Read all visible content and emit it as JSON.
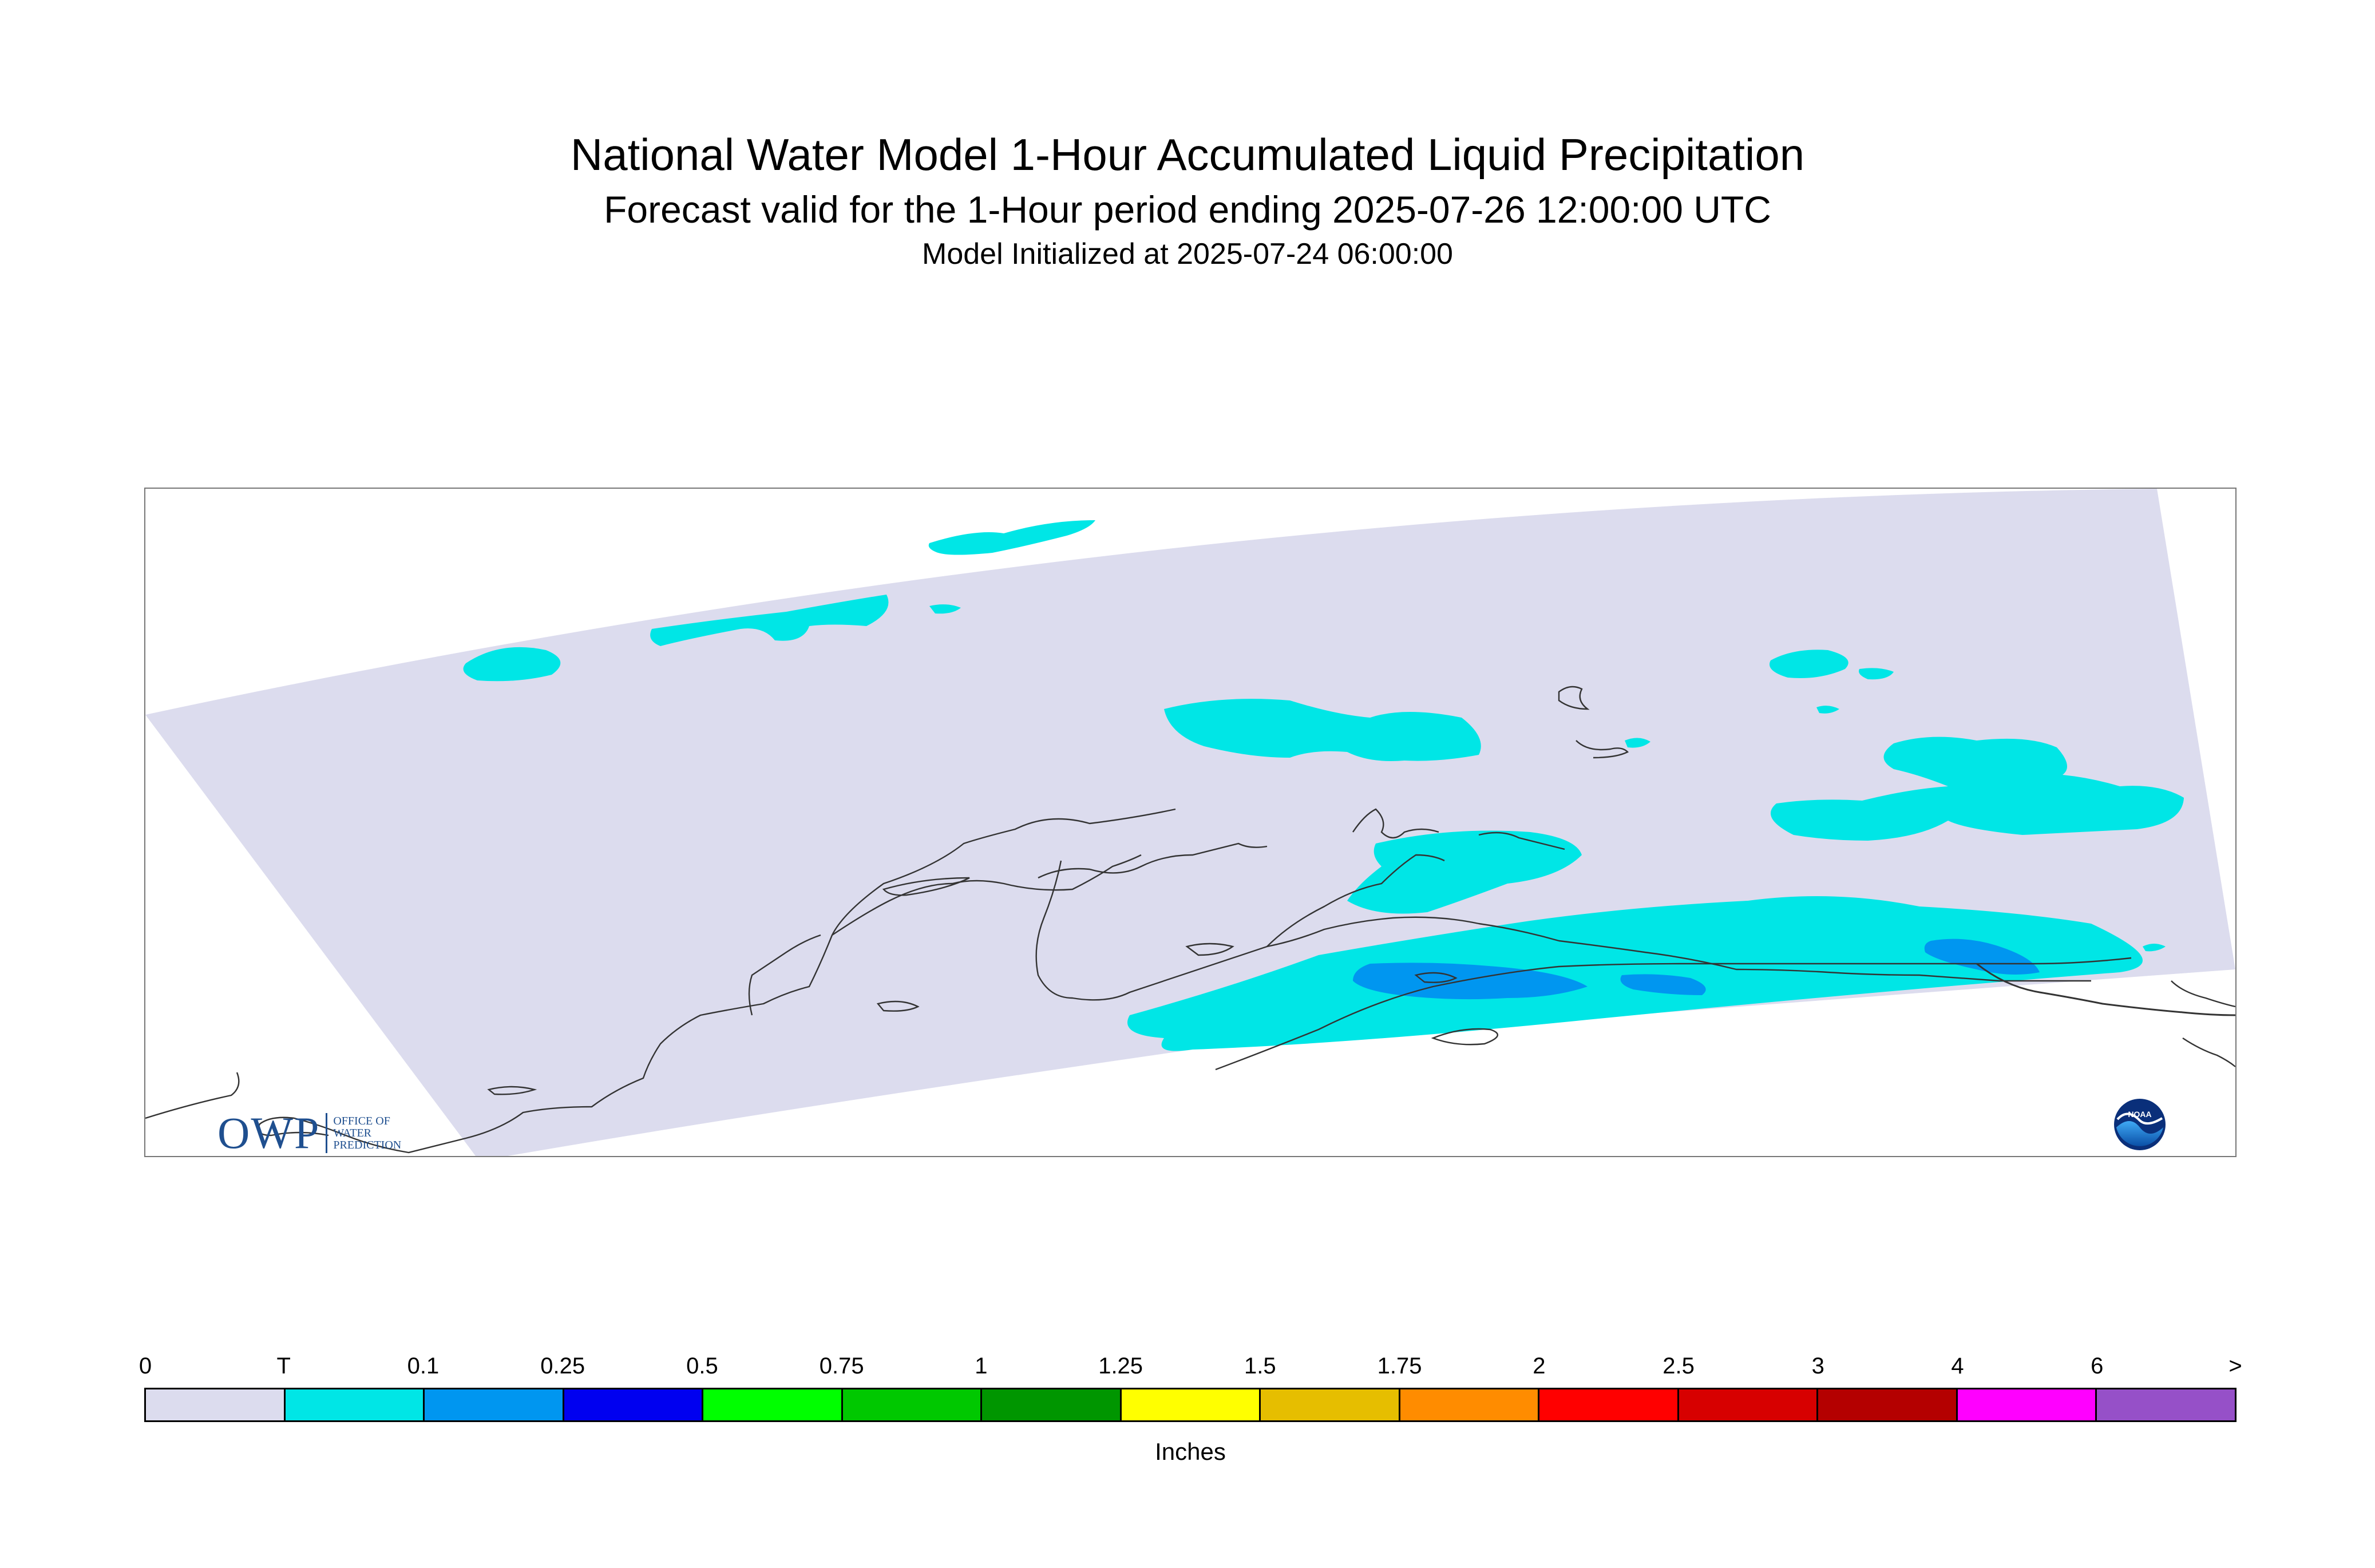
{
  "header": {
    "title": "National Water Model 1-Hour Accumulated Liquid Precipitation",
    "subtitle": "Forecast valid for the 1-Hour period ending 2025-07-26 12:00:00 UTC",
    "initialized": "Model Initialized at 2025-07-24 06:00:00"
  },
  "map": {
    "region": "Alaska",
    "background_color": "#dcdcee",
    "trace_color": "#00e6e6",
    "light_color": "#0096f0"
  },
  "logos": {
    "owp": {
      "mark": "OWP",
      "line1": "OFFICE OF",
      "line2": "WATER",
      "line3": "PREDICTION"
    },
    "noaa": {
      "text": "NOAA"
    }
  },
  "legend": {
    "labels": [
      "0",
      "T",
      "0.1",
      "0.25",
      "0.5",
      "0.75",
      "1",
      "1.25",
      "1.5",
      "1.75",
      "2",
      "2.5",
      "3",
      "4",
      "6",
      ">"
    ],
    "colors": [
      "#dcdcee",
      "#00e6e6",
      "#0096f0",
      "#0000f0",
      "#00ff00",
      "#00c800",
      "#009600",
      "#ffff00",
      "#e6be00",
      "#ff8c00",
      "#ff0000",
      "#d70000",
      "#b40000",
      "#ff00ff",
      "#9650c8"
    ],
    "unit": "Inches"
  }
}
